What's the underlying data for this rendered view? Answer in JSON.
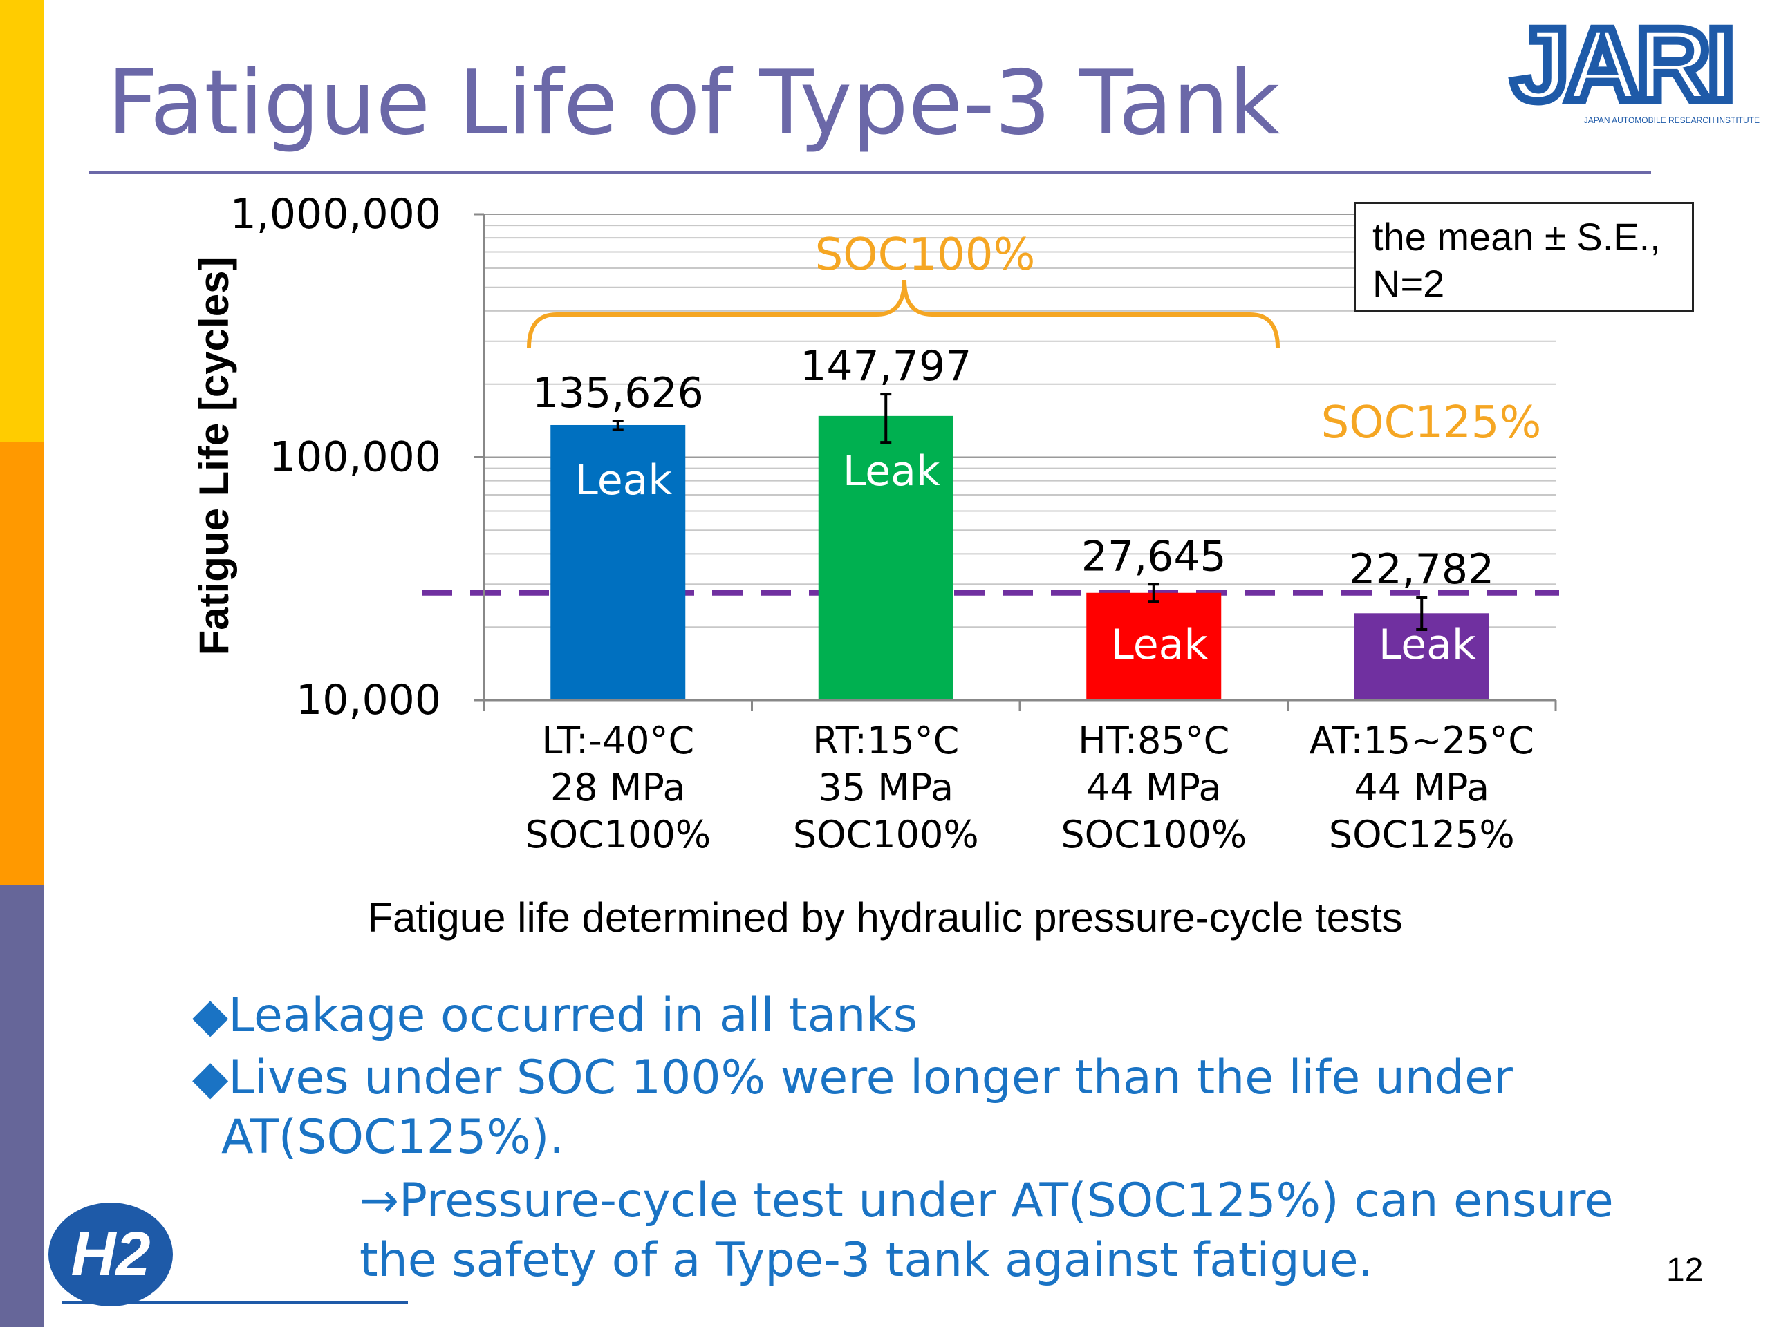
{
  "slide": {
    "title": "Fatigue Life of Type-3 Tank",
    "logo_text": "JARI",
    "logo_subtext": "JAPAN AUTOMOBILE RESEARCH INSTITUTE",
    "h2_logo_text": "H2",
    "page_number": "12",
    "caption": "Fatigue life determined by hydraulic pressure-cycle tests",
    "note_line1": "the mean ± S.E.,",
    "note_line2": "N=2",
    "bullets": [
      {
        "marker": "◆",
        "text": "Leakage occurred in all tanks"
      },
      {
        "marker": "◆",
        "text": "Lives under SOC 100% were longer than the life under"
      },
      {
        "marker": "",
        "text": "AT(SOC125%)."
      },
      {
        "marker": "",
        "text": "→Pressure-cycle test under AT(SOC125%) can ensure"
      },
      {
        "marker": "",
        "text": "the safety of a Type-3 tank against fatigue."
      }
    ],
    "colors": {
      "sidebar_top": "#FFCC00",
      "sidebar_mid": "#FF9900",
      "sidebar_bottom": "#666699",
      "title": "#6B68A8",
      "bullet_text": "#1A73C4",
      "annotation_orange": "#F5A623",
      "threshold_line": "#7030A0"
    }
  },
  "chart_data": {
    "type": "bar",
    "ylabel": "Fatigue Life [cycles]",
    "yscale": "log",
    "ylim": [
      10000,
      1000000
    ],
    "y_tick_labels": [
      "1,000,000",
      "100,000",
      "10,000"
    ],
    "y_tick_values": [
      1000000,
      100000,
      10000
    ],
    "categories": [
      [
        "LT:-40°C",
        "28 MPa",
        "SOC100%"
      ],
      [
        "RT:15°C",
        "35 MPa",
        "SOC100%"
      ],
      [
        "HT:85°C",
        "44 MPa",
        "SOC100%"
      ],
      [
        "AT:15~25°C",
        "44 MPa",
        "SOC125%"
      ]
    ],
    "values": [
      135626,
      147797,
      27645,
      22782
    ],
    "value_labels": [
      "135,626",
      "147,797",
      "27,645",
      "22,782"
    ],
    "error_low": [
      130000,
      115000,
      25500,
      19500
    ],
    "error_high": [
      141000,
      182000,
      30000,
      26500
    ],
    "bar_colors": [
      "#0070C0",
      "#00B050",
      "#FF0000",
      "#7030A0"
    ],
    "bar_text": [
      "Leak",
      "Leak",
      "Leak",
      "Leak"
    ],
    "threshold_value": 27645,
    "grid": true,
    "annotations": {
      "soc100_label": "SOC100%",
      "soc125_label": "SOC125%"
    }
  }
}
